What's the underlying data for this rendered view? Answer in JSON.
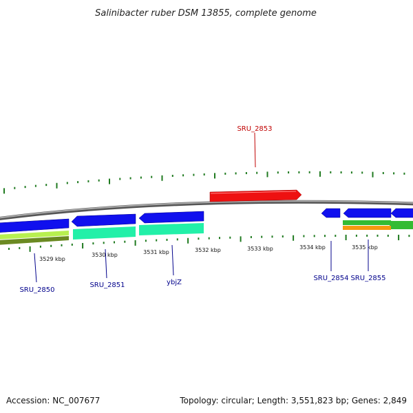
{
  "title": "Salinibacter ruber DSM 13855, complete genome",
  "footer": {
    "accession": "Accession: NC_007677",
    "summary": "Topology: circular; Length: 3,551,823 bp; Genes: 2,849"
  },
  "colors": {
    "background": "#ffffff",
    "backbone": "#8a8a8a",
    "tick": "#1f7a1f",
    "label_blue": "#00008b",
    "label_red": "#c00000",
    "gene_red": "#ee1111",
    "gene_blue": "#1010ee",
    "gene_teal": "#22f0a8",
    "gene_green": "#33bb33",
    "gene_lime": "#b8f050",
    "gene_olive": "#6b8a22",
    "gene_orange": "#f59a10"
  },
  "tick_labels": [
    "3529 kbp",
    "3530 kbp",
    "3531 kbp",
    "3532 kbp",
    "3533 kbp",
    "3534 kbp",
    "3535 kbp"
  ],
  "gene_labels": [
    {
      "id": "sru-2853",
      "text": "SRU_2853",
      "color": "red"
    },
    {
      "id": "sru-2850",
      "text": "SRU_2850",
      "color": "blue"
    },
    {
      "id": "sru-2851",
      "text": "SRU_2851",
      "color": "blue"
    },
    {
      "id": "ybjz",
      "text": "ybjZ",
      "color": "blue"
    },
    {
      "id": "sru-2854",
      "text": "SRU_2854",
      "color": "blue"
    },
    {
      "id": "sru-2855",
      "text": "SRU_2855",
      "color": "blue"
    }
  ]
}
